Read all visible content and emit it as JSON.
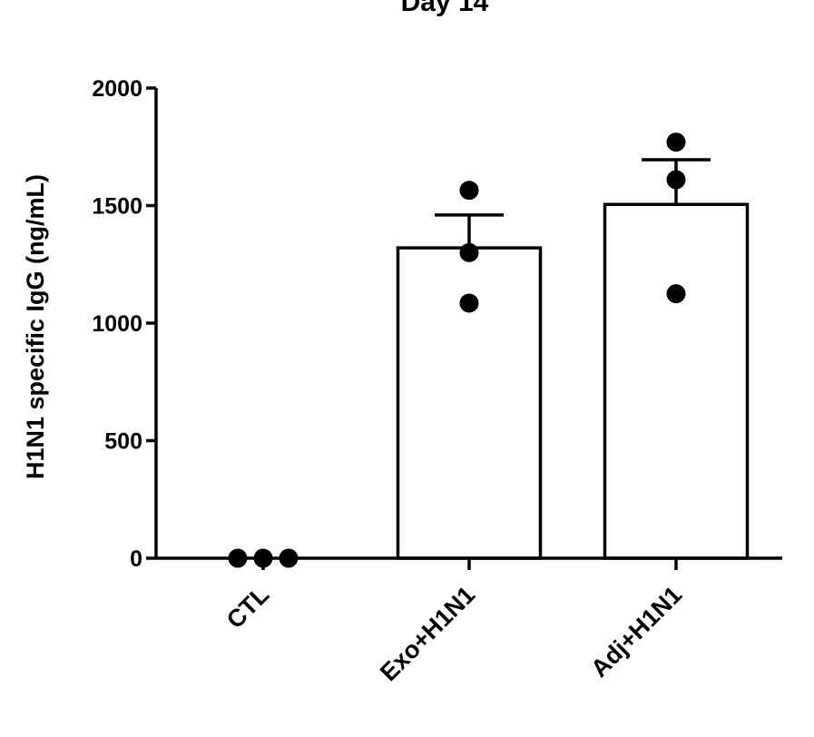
{
  "chart_data": {
    "type": "bar",
    "title": "Day 14",
    "xlabel": "",
    "ylabel": "H1N1 specific IgG (ng/mL)",
    "ylim": [
      0,
      2000
    ],
    "yticks": [
      0,
      500,
      1000,
      1500,
      2000
    ],
    "yticklabels": [
      "0",
      "500",
      "1000",
      "1500",
      "2000"
    ],
    "categories": [
      "CTL",
      "Exo+H1N1",
      "Adj+H1N1"
    ],
    "values": [
      0,
      1320,
      1505
    ],
    "errors": [
      0,
      140,
      190
    ],
    "points": [
      [
        0,
        0,
        0
      ],
      [
        1565,
        1300,
        1085
      ],
      [
        1770,
        1610,
        1125
      ]
    ],
    "grid": false,
    "legend": "none",
    "colors": {
      "bar_fill": "#ffffff",
      "stroke": "#000000",
      "point": "#000000"
    }
  }
}
